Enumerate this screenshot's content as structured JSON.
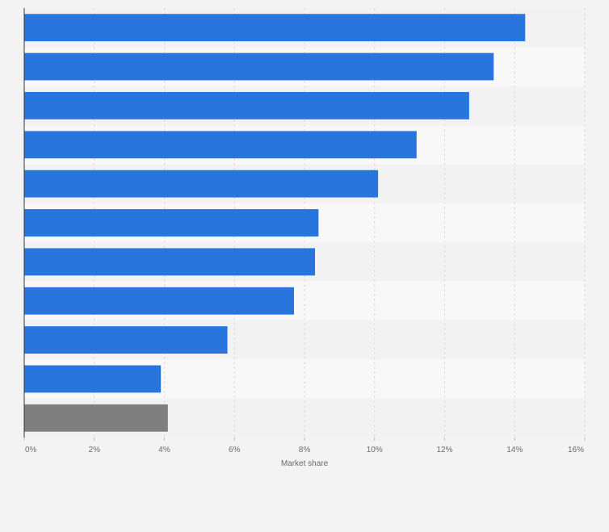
{
  "chart_data": {
    "type": "bar",
    "orientation": "horizontal",
    "categories": [
      "",
      "",
      "",
      "",
      "",
      "",
      "",
      "",
      "",
      "",
      ""
    ],
    "values": [
      14.3,
      13.4,
      12.7,
      11.2,
      10.1,
      8.4,
      8.3,
      7.7,
      5.8,
      3.9,
      4.1
    ],
    "bar_colors": [
      "#2876dd",
      "#2876dd",
      "#2876dd",
      "#2876dd",
      "#2876dd",
      "#2876dd",
      "#2876dd",
      "#2876dd",
      "#2876dd",
      "#2876dd",
      "#7f7f7f"
    ],
    "xlabel": "Market share",
    "xlim": [
      0,
      16
    ],
    "x_ticks": [
      "0%",
      "2%",
      "4%",
      "6%",
      "8%",
      "10%",
      "12%",
      "14%",
      "16%"
    ],
    "grid": true,
    "band_colors": [
      "#f2f2f2",
      "#f8f8f8"
    ],
    "background": "#f3f3f3"
  }
}
